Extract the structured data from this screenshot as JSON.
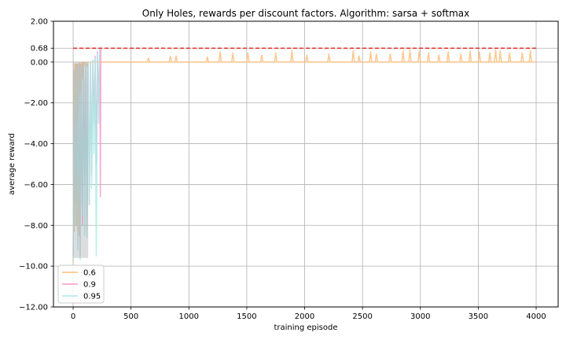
{
  "chart_data": {
    "type": "line",
    "title": "Only Holes, rewards per discount factors. Algorithm: sarsa + softmax",
    "xlabel": "training episode",
    "ylabel": "average reward",
    "xlim": [
      -170,
      4190
    ],
    "ylim": [
      -12.0,
      2.0
    ],
    "x_ticks": [
      0,
      500,
      1000,
      1500,
      2000,
      2500,
      3000,
      3500,
      4000
    ],
    "y_ticks": [
      -12.0,
      -10.0,
      -8.0,
      -6.0,
      -4.0,
      -2.0,
      0.0,
      0.68,
      2.0
    ],
    "x_tick_labels": [
      "0",
      "500",
      "1000",
      "1500",
      "2000",
      "2500",
      "3000",
      "3500",
      "4000"
    ],
    "y_tick_labels": [
      "−12.00",
      "−10.00",
      "−8.00",
      "−6.00",
      "−4.00",
      "−2.00",
      "0.00",
      "0.68",
      "2.00"
    ],
    "grid": true,
    "legend_position": "lower-left",
    "reference_line": {
      "y": 0.68,
      "x_range": [
        0,
        4000
      ],
      "color": "#e8302a",
      "style": "dashed"
    },
    "series": [
      {
        "name": "0.6",
        "color": "#ffbe7a",
        "points": [
          [
            0,
            -9.8
          ],
          [
            5,
            -0.5
          ],
          [
            10,
            -8.3
          ],
          [
            15,
            -0.1
          ],
          [
            20,
            -6.1
          ],
          [
            25,
            -0.1
          ],
          [
            30,
            -8.0
          ],
          [
            35,
            -0.1
          ],
          [
            40,
            -3.0
          ],
          [
            45,
            -0.1
          ],
          [
            50,
            -8.5
          ],
          [
            55,
            -0.05
          ],
          [
            60,
            -1.5
          ],
          [
            65,
            -0.1
          ],
          [
            70,
            -2.5
          ],
          [
            75,
            -0.05
          ],
          [
            80,
            -0.8
          ],
          [
            85,
            0
          ],
          [
            90,
            -0.3
          ],
          [
            100,
            0
          ],
          [
            120,
            -0.2
          ],
          [
            130,
            0
          ],
          [
            200,
            0
          ],
          [
            640,
            0
          ],
          [
            650,
            0.2
          ],
          [
            660,
            0
          ],
          [
            830,
            0
          ],
          [
            840,
            0.3
          ],
          [
            850,
            0
          ],
          [
            880,
            0
          ],
          [
            890,
            0.3
          ],
          [
            900,
            0
          ],
          [
            1150,
            0
          ],
          [
            1160,
            0.25
          ],
          [
            1170,
            0
          ],
          [
            1260,
            0
          ],
          [
            1270,
            0.5
          ],
          [
            1280,
            0
          ],
          [
            1370,
            0
          ],
          [
            1380,
            0.45
          ],
          [
            1390,
            0
          ],
          [
            1500,
            0
          ],
          [
            1510,
            0.45
          ],
          [
            1520,
            0
          ],
          [
            1620,
            0
          ],
          [
            1630,
            0.35
          ],
          [
            1640,
            0
          ],
          [
            1740,
            0
          ],
          [
            1750,
            0.45
          ],
          [
            1760,
            0
          ],
          [
            1880,
            0
          ],
          [
            1890,
            0.55
          ],
          [
            1900,
            0
          ],
          [
            2010,
            0
          ],
          [
            2020,
            0.35
          ],
          [
            2030,
            0
          ],
          [
            2200,
            0
          ],
          [
            2210,
            0.4
          ],
          [
            2220,
            0
          ],
          [
            2410,
            0
          ],
          [
            2420,
            0.55
          ],
          [
            2430,
            0
          ],
          [
            2460,
            0
          ],
          [
            2470,
            0.3
          ],
          [
            2480,
            0
          ],
          [
            2560,
            0
          ],
          [
            2570,
            0.5
          ],
          [
            2580,
            0
          ],
          [
            2610,
            0
          ],
          [
            2620,
            0.4
          ],
          [
            2630,
            0
          ],
          [
            2730,
            0
          ],
          [
            2740,
            0.4
          ],
          [
            2750,
            0
          ],
          [
            2840,
            0
          ],
          [
            2850,
            0.55
          ],
          [
            2860,
            0
          ],
          [
            2900,
            0
          ],
          [
            2910,
            0.6
          ],
          [
            2920,
            0
          ],
          [
            2980,
            0
          ],
          [
            2990,
            0.55
          ],
          [
            3000,
            0
          ],
          [
            3060,
            0
          ],
          [
            3070,
            0.45
          ],
          [
            3080,
            0
          ],
          [
            3150,
            0
          ],
          [
            3160,
            0.35
          ],
          [
            3170,
            0
          ],
          [
            3230,
            0
          ],
          [
            3240,
            0.5
          ],
          [
            3250,
            0
          ],
          [
            3340,
            0
          ],
          [
            3350,
            0.4
          ],
          [
            3360,
            0
          ],
          [
            3420,
            0
          ],
          [
            3430,
            0.55
          ],
          [
            3440,
            0
          ],
          [
            3500,
            0
          ],
          [
            3510,
            0.5
          ],
          [
            3520,
            0
          ],
          [
            3590,
            0
          ],
          [
            3600,
            0.45
          ],
          [
            3610,
            0
          ],
          [
            3640,
            0
          ],
          [
            3650,
            0.6
          ],
          [
            3660,
            0
          ],
          [
            3680,
            0
          ],
          [
            3690,
            0.55
          ],
          [
            3700,
            0
          ],
          [
            3760,
            0
          ],
          [
            3770,
            0.45
          ],
          [
            3780,
            0
          ],
          [
            3870,
            0
          ],
          [
            3880,
            0.45
          ],
          [
            3890,
            0
          ],
          [
            3940,
            0
          ],
          [
            3950,
            0.55
          ],
          [
            3960,
            0
          ],
          [
            4000,
            0
          ]
        ]
      },
      {
        "name": "0.9",
        "color": "#ff99cc",
        "points": [
          [
            0,
            -9.5
          ],
          [
            10,
            -0.5
          ],
          [
            20,
            -7.0
          ],
          [
            30,
            -0.2
          ],
          [
            40,
            -8.3
          ],
          [
            50,
            -0.1
          ],
          [
            60,
            -9.5
          ],
          [
            70,
            -0.2
          ],
          [
            80,
            -8.0
          ],
          [
            90,
            -0.1
          ],
          [
            100,
            -6.0
          ],
          [
            110,
            -0.2
          ],
          [
            120,
            -8.0
          ],
          [
            130,
            -0.1
          ],
          [
            140,
            -7.0
          ],
          [
            150,
            0
          ],
          [
            160,
            -5.5
          ],
          [
            170,
            0.1
          ],
          [
            180,
            -3.0
          ],
          [
            190,
            0.3
          ],
          [
            200,
            -5.0
          ],
          [
            210,
            0.5
          ],
          [
            220,
            -2.0
          ],
          [
            230,
            0.6
          ],
          [
            235,
            -6.6
          ],
          [
            240,
            0.68
          ],
          [
            250,
            0.68
          ],
          [
            260,
            0.68
          ]
        ]
      },
      {
        "name": "0.95",
        "color": "#a8ece6",
        "points": [
          [
            0,
            -9.7
          ],
          [
            10,
            -0.4
          ],
          [
            20,
            -8.0
          ],
          [
            30,
            -0.2
          ],
          [
            40,
            -9.2
          ],
          [
            50,
            -0.1
          ],
          [
            60,
            -9.7
          ],
          [
            70,
            -0.2
          ],
          [
            80,
            -7.5
          ],
          [
            90,
            -0.1
          ],
          [
            100,
            -8.5
          ],
          [
            110,
            -0.1
          ],
          [
            120,
            -8.6
          ],
          [
            130,
            0
          ],
          [
            140,
            -7.0
          ],
          [
            150,
            0
          ],
          [
            160,
            -6.2
          ],
          [
            170,
            0.1
          ],
          [
            180,
            -4.5
          ],
          [
            190,
            0.2
          ],
          [
            200,
            -9.5
          ],
          [
            210,
            0.4
          ],
          [
            220,
            -3.0
          ],
          [
            230,
            0.6
          ],
          [
            240,
            0.68
          ],
          [
            260,
            0.68
          ]
        ]
      }
    ]
  }
}
